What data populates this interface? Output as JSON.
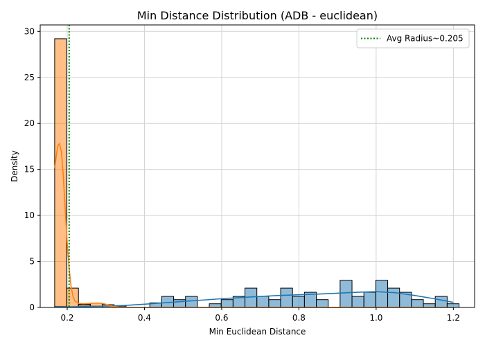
{
  "chart_data": {
    "type": "histogram",
    "title": "Min Distance Distribution (ADB - euclidean)",
    "xlabel": "Min Euclidean Distance",
    "ylabel": "Density",
    "xlim": [
      0.13,
      1.255
    ],
    "ylim": [
      0,
      30.7
    ],
    "xticks": [
      0.2,
      0.4,
      0.6,
      0.8,
      1.0,
      1.2
    ],
    "xtick_labels": [
      "0.2",
      "0.4",
      "0.6",
      "0.8",
      "1.0",
      "1.2"
    ],
    "yticks": [
      0,
      5,
      10,
      15,
      20,
      25,
      30
    ],
    "ytick_labels": [
      "0",
      "5",
      "10",
      "15",
      "20",
      "25",
      "30"
    ],
    "grid": true,
    "bin_width": 0.0308,
    "reference_line": {
      "x": 0.205,
      "label": "Avg Radius~0.205",
      "color": "#008000",
      "style": "dotted"
    },
    "legend": {
      "placement": "top-right"
    },
    "series": [
      {
        "color": "#1f77b4",
        "bars": [
          {
            "x": 0.1675,
            "h": 0.12
          },
          {
            "x": 0.2291,
            "h": 0.33
          },
          {
            "x": 0.2599,
            "h": 0.15
          },
          {
            "x": 0.2907,
            "h": 0.15
          },
          {
            "x": 0.3215,
            "h": 0.15
          },
          {
            "x": 0.4139,
            "h": 0.5
          },
          {
            "x": 0.4447,
            "h": 1.2
          },
          {
            "x": 0.4755,
            "h": 0.85
          },
          {
            "x": 0.5063,
            "h": 1.2
          },
          {
            "x": 0.5679,
            "h": 0.4
          },
          {
            "x": 0.5987,
            "h": 0.85
          },
          {
            "x": 0.6295,
            "h": 1.2
          },
          {
            "x": 0.6603,
            "h": 2.1
          },
          {
            "x": 0.6911,
            "h": 1.2
          },
          {
            "x": 0.7219,
            "h": 0.85
          },
          {
            "x": 0.7527,
            "h": 2.1
          },
          {
            "x": 0.7835,
            "h": 1.2
          },
          {
            "x": 0.8143,
            "h": 1.65
          },
          {
            "x": 0.8451,
            "h": 0.85
          },
          {
            "x": 0.9067,
            "h": 2.95
          },
          {
            "x": 0.9375,
            "h": 1.2
          },
          {
            "x": 0.9683,
            "h": 1.65
          },
          {
            "x": 0.9991,
            "h": 2.95
          },
          {
            "x": 1.0299,
            "h": 2.1
          },
          {
            "x": 1.0607,
            "h": 1.65
          },
          {
            "x": 1.0915,
            "h": 0.85
          },
          {
            "x": 1.1223,
            "h": 0.4
          },
          {
            "x": 1.1531,
            "h": 1.2
          },
          {
            "x": 1.1839,
            "h": 0.4
          }
        ],
        "kde": [
          [
            0.168,
            0.05
          ],
          [
            0.2,
            0.06
          ],
          [
            0.25,
            0.1
          ],
          [
            0.3,
            0.15
          ],
          [
            0.35,
            0.22
          ],
          [
            0.4,
            0.35
          ],
          [
            0.45,
            0.5
          ],
          [
            0.5,
            0.65
          ],
          [
            0.55,
            0.8
          ],
          [
            0.6,
            0.95
          ],
          [
            0.65,
            1.08
          ],
          [
            0.7,
            1.2
          ],
          [
            0.75,
            1.3
          ],
          [
            0.8,
            1.38
          ],
          [
            0.85,
            1.45
          ],
          [
            0.9,
            1.55
          ],
          [
            0.95,
            1.65
          ],
          [
            1.0,
            1.72
          ],
          [
            1.05,
            1.6
          ],
          [
            1.1,
            1.3
          ],
          [
            1.15,
            0.95
          ],
          [
            1.2,
            0.55
          ]
        ]
      },
      {
        "color": "#ff7f0e",
        "bars": [
          {
            "x": 0.1675,
            "h": 29.2
          },
          {
            "x": 0.1983,
            "h": 2.1
          },
          {
            "x": 0.2291,
            "h": 0.3
          },
          {
            "x": 0.2599,
            "h": 0.45
          },
          {
            "x": 0.2907,
            "h": 0.3
          }
        ],
        "kde": [
          [
            0.168,
            15.2
          ],
          [
            0.172,
            16.6
          ],
          [
            0.176,
            17.6
          ],
          [
            0.18,
            17.8
          ],
          [
            0.185,
            16.9
          ],
          [
            0.19,
            14.2
          ],
          [
            0.195,
            10.5
          ],
          [
            0.2,
            7.0
          ],
          [
            0.205,
            4.2
          ],
          [
            0.21,
            2.3
          ],
          [
            0.215,
            1.2
          ],
          [
            0.22,
            0.7
          ],
          [
            0.23,
            0.45
          ],
          [
            0.24,
            0.4
          ],
          [
            0.25,
            0.42
          ],
          [
            0.26,
            0.45
          ],
          [
            0.27,
            0.47
          ],
          [
            0.28,
            0.48
          ],
          [
            0.29,
            0.45
          ],
          [
            0.3,
            0.35
          ],
          [
            0.31,
            0.2
          ],
          [
            0.32,
            0.1
          ],
          [
            0.34,
            0.03
          ],
          [
            0.38,
            0.01
          ],
          [
            1.2,
            0.0
          ]
        ]
      }
    ]
  }
}
